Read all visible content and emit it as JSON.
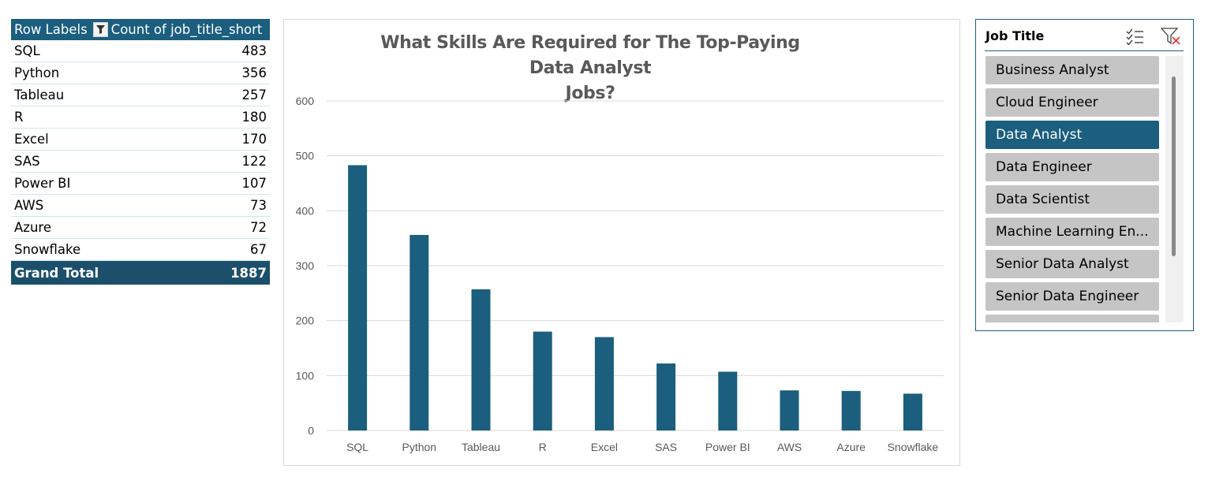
{
  "pivot": {
    "header_row_label": "Row Labels",
    "header_value_label": "Count of job_title_short",
    "rows": [
      {
        "label": "SQL",
        "value": "483"
      },
      {
        "label": "Python",
        "value": "356"
      },
      {
        "label": "Tableau",
        "value": "257"
      },
      {
        "label": "R",
        "value": "180"
      },
      {
        "label": "Excel",
        "value": "170"
      },
      {
        "label": "SAS",
        "value": "122"
      },
      {
        "label": "Power BI",
        "value": "107"
      },
      {
        "label": "AWS",
        "value": "73"
      },
      {
        "label": "Azure",
        "value": "72"
      },
      {
        "label": "Snowflake",
        "value": "67"
      }
    ],
    "total_label": "Grand Total",
    "total_value": "1887",
    "filter_icon": "filter-dropdown-icon"
  },
  "chart_data": {
    "type": "bar",
    "title": "What Skills Are Required for The Top-Paying Data Analyst Jobs?",
    "title_line1": "What Skills Are Required for The Top-Paying Data Analyst",
    "title_line2": "Jobs?",
    "categories": [
      "SQL",
      "Python",
      "Tableau",
      "R",
      "Excel",
      "SAS",
      "Power BI",
      "AWS",
      "Azure",
      "Snowflake"
    ],
    "values": [
      483,
      356,
      257,
      180,
      170,
      122,
      107,
      73,
      72,
      67
    ],
    "xlabel": "",
    "ylabel": "",
    "ylim": [
      0,
      600
    ],
    "yticks": [
      0,
      100,
      200,
      300,
      400,
      500,
      600
    ],
    "grid": true,
    "legend": "none",
    "bar_color": "#1b5e7e",
    "grid_color": "#d9d9d9",
    "tick_color": "#595959"
  },
  "slicer": {
    "title": "Job Title",
    "multi_select_icon": "multi-select-icon",
    "clear_filter_icon": "clear-filter-icon",
    "items": [
      {
        "label": "Business Analyst",
        "selected": false
      },
      {
        "label": "Cloud Engineer",
        "selected": false
      },
      {
        "label": "Data Analyst",
        "selected": true
      },
      {
        "label": "Data Engineer",
        "selected": false
      },
      {
        "label": "Data Scientist",
        "selected": false
      },
      {
        "label": "Machine Learning En...",
        "selected": false
      },
      {
        "label": "Senior Data Analyst",
        "selected": false
      },
      {
        "label": "Senior Data Engineer",
        "selected": false
      }
    ],
    "accent_color": "#1b5e7e",
    "item_color": "#c5c5c5",
    "clear_icon_color": "#e0352b"
  }
}
